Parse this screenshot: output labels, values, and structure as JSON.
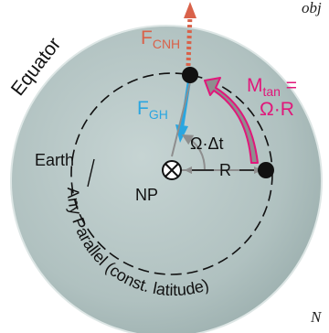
{
  "labels": {
    "equator": "Equator",
    "earth": "Earth",
    "np": "NP",
    "radius": "R",
    "omega_dt": "Ω·Δt",
    "f_cnh_main": "F",
    "f_cnh_sub": "CNH",
    "f_gh_main": "F",
    "f_gh_sub": "GH",
    "m_tan_main": "M",
    "m_tan_sub": "tan",
    "m_tan_eq": " =",
    "m_tan_formula": "Ω·R",
    "parallel_text": "Any Parallel (const. latitude)",
    "corner_top": "obj",
    "corner_bottom": "N"
  },
  "colors": {
    "background": "#ffffff",
    "earth_fill": "#aebfbe",
    "earth_edge": "#dde6e5",
    "f_cnh": "#d9624a",
    "f_gh": "#2aa6e0",
    "m_tan": "#e0177a",
    "arrow_gray": "#8e8e8e",
    "dot": "#111111"
  }
}
